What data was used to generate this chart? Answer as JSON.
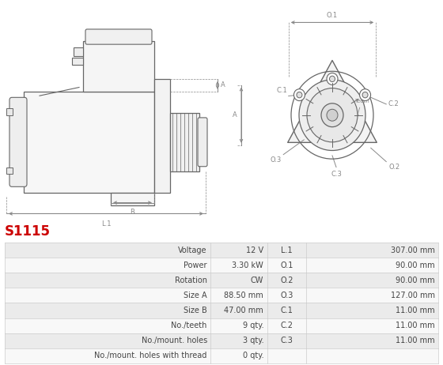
{
  "title": "S1115",
  "title_color": "#cc0000",
  "rows": [
    [
      "Voltage",
      "12 V",
      "L.1",
      "307.00 mm"
    ],
    [
      "Power",
      "3.30 kW",
      "O.1",
      "90.00 mm"
    ],
    [
      "Rotation",
      "CW",
      "O.2",
      "90.00 mm"
    ],
    [
      "Size A",
      "88.50 mm",
      "O.3",
      "127.00 mm"
    ],
    [
      "Size B",
      "47.00 mm",
      "C.1",
      "11.00 mm"
    ],
    [
      "No./teeth",
      "9 qty.",
      "C.2",
      "11.00 mm"
    ],
    [
      "No./mount. holes",
      "3 qty.",
      "C.3",
      "11.00 mm"
    ],
    [
      "No./mount. holes with thread",
      "0 qty.",
      "",
      ""
    ]
  ],
  "row_colors": [
    "#ebebeb",
    "#f8f8f8",
    "#ebebeb",
    "#f8f8f8",
    "#ebebeb",
    "#f8f8f8",
    "#ebebeb",
    "#f8f8f8"
  ],
  "border_color": "#cccccc",
  "text_color": "#444444",
  "figure_bg": "#ffffff",
  "line_color": "#666666",
  "dim_color": "#888888"
}
